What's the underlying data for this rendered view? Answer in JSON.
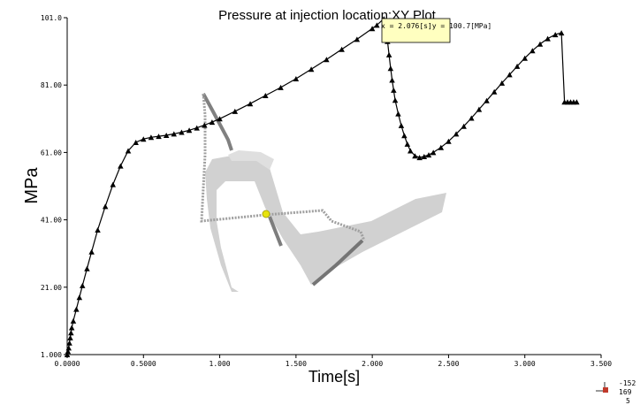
{
  "chart_data": {
    "type": "line",
    "title": "Pressure at injection location:XY Plot",
    "xlabel": "Time[s]",
    "ylabel": "MPa",
    "xlim": [
      0,
      3.5
    ],
    "ylim": [
      1.0,
      101.0
    ],
    "x_tick_labels": [
      "0.0000",
      "0.5000",
      "1.000",
      "1.500",
      "2.000",
      "2.500",
      "3.000",
      "3.500"
    ],
    "x_ticks": [
      0,
      0.5,
      1.0,
      1.5,
      2.0,
      2.5,
      3.0,
      3.5
    ],
    "y_tick_labels": [
      "1.000",
      "21.00",
      "41.00",
      "61.00",
      "81.00",
      "101.0"
    ],
    "y_ticks": [
      1.0,
      21.0,
      41.0,
      61.0,
      81.0,
      101.0
    ],
    "marker": "triangle",
    "series": [
      {
        "x": [
          0.0,
          0.005,
          0.01,
          0.015,
          0.02,
          0.025,
          0.03,
          0.04,
          0.06,
          0.08,
          0.1,
          0.13,
          0.16,
          0.2,
          0.25,
          0.3,
          0.35,
          0.4,
          0.45,
          0.5,
          0.55,
          0.6,
          0.65,
          0.7,
          0.75,
          0.8,
          0.85,
          0.9,
          0.95,
          1.0,
          1.1,
          1.2,
          1.3,
          1.4,
          1.5,
          1.6,
          1.7,
          1.8,
          1.9,
          2.0,
          2.03,
          2.076,
          2.09,
          2.1,
          2.11,
          2.12,
          2.13,
          2.14,
          2.15,
          2.17,
          2.19,
          2.21,
          2.23,
          2.25,
          2.28,
          2.31,
          2.34,
          2.37,
          2.4,
          2.45,
          2.5,
          2.55,
          2.6,
          2.65,
          2.7,
          2.75,
          2.8,
          2.85,
          2.9,
          2.95,
          3.0,
          3.05,
          3.1,
          3.15,
          3.2,
          3.24,
          3.26,
          3.28,
          3.3,
          3.32,
          3.34
        ],
        "y": [
          1.0,
          2.0,
          3.0,
          4.5,
          6.0,
          7.5,
          9.0,
          11.0,
          14.5,
          18.0,
          21.5,
          26.5,
          31.5,
          38.0,
          45.0,
          51.5,
          57.0,
          61.5,
          64.0,
          65.0,
          65.5,
          65.8,
          66.1,
          66.5,
          67.0,
          67.6,
          68.3,
          69.1,
          70.0,
          71.0,
          73.2,
          75.5,
          77.9,
          80.3,
          82.9,
          85.7,
          88.6,
          91.6,
          94.6,
          97.8,
          98.8,
          100.7,
          98.0,
          94.0,
          90.0,
          86.0,
          82.5,
          79.5,
          76.5,
          72.5,
          69.0,
          66.0,
          63.5,
          61.5,
          60.0,
          59.5,
          59.8,
          60.3,
          61.0,
          62.5,
          64.3,
          66.5,
          68.8,
          71.2,
          73.8,
          76.4,
          79.0,
          81.6,
          84.1,
          86.6,
          89.0,
          91.2,
          93.2,
          94.8,
          96.0,
          96.5,
          76.0,
          76.0,
          76.0,
          76.0,
          76.0
        ]
      }
    ],
    "tooltip": "x = 2.076[s]y = 100.7[MPa]",
    "annotation_point": {
      "x": 2.076,
      "y": 100.7
    },
    "triad_values": [
      "-152",
      "169",
      "5"
    ]
  }
}
